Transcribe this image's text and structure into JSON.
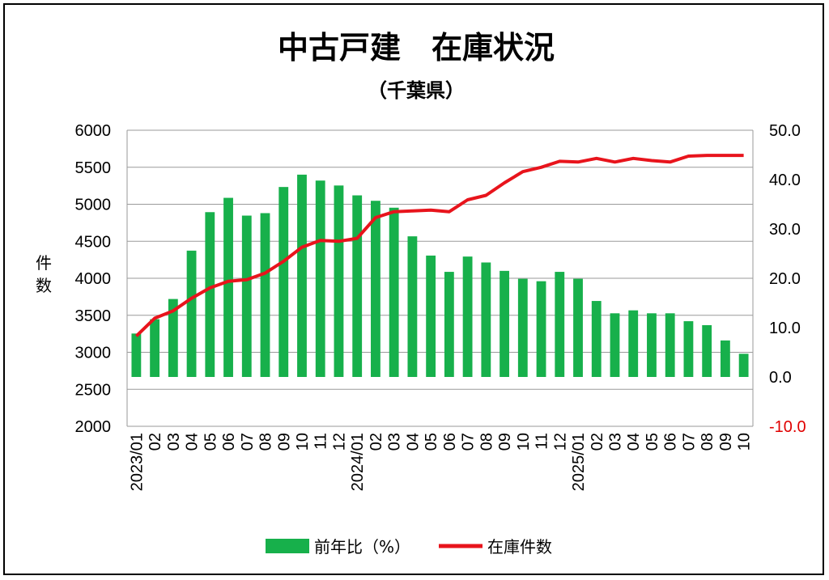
{
  "chart_data": {
    "type": "bar+line",
    "title": "中古戸建　在庫状況",
    "subtitle": "（千葉県）",
    "ylabel_left": "件数",
    "ylim_left": [
      2000,
      6000
    ],
    "yticks_left": [
      "2000",
      "2500",
      "3000",
      "3500",
      "4000",
      "4500",
      "5000",
      "5500",
      "6000"
    ],
    "ylim_right": [
      -10.0,
      50.0
    ],
    "yticks_right": [
      "-10.0",
      "0.0",
      "10.0",
      "20.0",
      "30.0",
      "40.0",
      "50.0"
    ],
    "grid": true,
    "legend_position": "bottom",
    "categories": [
      "2023/01",
      "02",
      "03",
      "04",
      "05",
      "06",
      "07",
      "08",
      "09",
      "10",
      "11",
      "12",
      "2024/01",
      "02",
      "03",
      "04",
      "05",
      "06",
      "07",
      "08",
      "09",
      "10",
      "11",
      "12",
      "2025/01",
      "02",
      "03",
      "04",
      "05",
      "06",
      "07",
      "08",
      "09",
      "10"
    ],
    "series": [
      {
        "name": "前年比（%）",
        "type": "bar",
        "axis": "right",
        "color": "#17b04b",
        "values": [
          8.8,
          11.7,
          15.8,
          25.6,
          33.4,
          36.3,
          32.7,
          33.2,
          38.5,
          41.0,
          39.8,
          38.8,
          36.8,
          35.7,
          34.3,
          28.5,
          24.6,
          21.3,
          24.4,
          23.2,
          21.5,
          19.9,
          19.4,
          21.3,
          19.9,
          15.4,
          12.9,
          13.5,
          12.9,
          12.9,
          11.3,
          10.5,
          7.4,
          4.7
        ]
      },
      {
        "name": "在庫件数",
        "type": "line",
        "axis": "left",
        "color": "#e8141c",
        "values": [
          3220,
          3460,
          3560,
          3730,
          3870,
          3960,
          3980,
          4070,
          4230,
          4420,
          4510,
          4500,
          4540,
          4820,
          4900,
          4910,
          4920,
          4900,
          5060,
          5120,
          5290,
          5440,
          5500,
          5580,
          5570,
          5620,
          5570,
          5620,
          5590,
          5570,
          5650,
          5660,
          5660,
          5660
        ]
      }
    ]
  }
}
